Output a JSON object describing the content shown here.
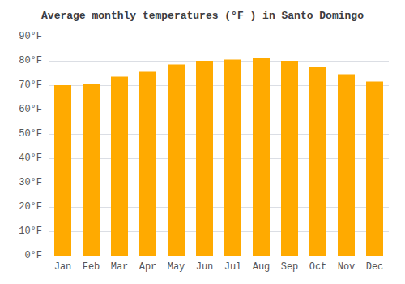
{
  "chart_data": {
    "type": "bar",
    "title": "Average monthly temperatures (°F ) in Santo Domingo",
    "categories": [
      "Jan",
      "Feb",
      "Mar",
      "Apr",
      "May",
      "Jun",
      "Jul",
      "Aug",
      "Sep",
      "Oct",
      "Nov",
      "Dec"
    ],
    "values": [
      70,
      70.5,
      73.5,
      75.5,
      78.5,
      80,
      80.5,
      81,
      80,
      77.5,
      74.5,
      71.5
    ],
    "color": "#FFAA00",
    "ylim": [
      0,
      90
    ],
    "yticks": [
      {
        "value": 0,
        "label": "0°F"
      },
      {
        "value": 10,
        "label": "10°F"
      },
      {
        "value": 20,
        "label": "20°F"
      },
      {
        "value": 30,
        "label": "30°F"
      },
      {
        "value": 40,
        "label": "40°F"
      },
      {
        "value": 50,
        "label": "50°F"
      },
      {
        "value": 60,
        "label": "60°F"
      },
      {
        "value": 70,
        "label": "70°F"
      },
      {
        "value": 80,
        "label": "80°F"
      },
      {
        "value": 90,
        "label": "90°F"
      }
    ],
    "grid": true
  }
}
